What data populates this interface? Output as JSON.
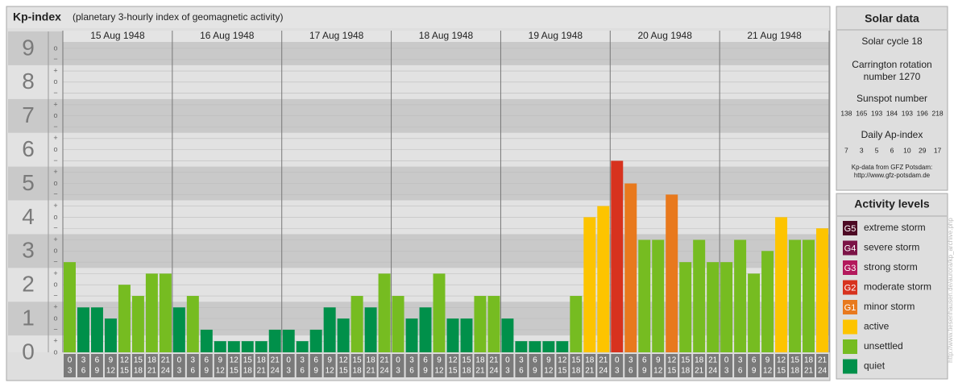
{
  "chart_data": {
    "type": "bar",
    "title": "Kp-index",
    "subtitle": "(planetary 3-hourly index of geomagnetic activity)",
    "ylim": [
      0,
      9.5
    ],
    "yticks": [
      0,
      1,
      2,
      3,
      4,
      5,
      6,
      7,
      8,
      9
    ],
    "minor_yticks": [
      {
        "value": 0,
        "label": "o"
      },
      {
        "value": 0.33,
        "label": "+"
      },
      {
        "value": 0.67,
        "label": "−"
      },
      {
        "value": 1,
        "label": "o"
      },
      {
        "value": 1.33,
        "label": "+"
      },
      {
        "value": 1.67,
        "label": "−"
      },
      {
        "value": 2,
        "label": "o"
      },
      {
        "value": 2.33,
        "label": "+"
      },
      {
        "value": 2.67,
        "label": "−"
      },
      {
        "value": 3,
        "label": "o"
      },
      {
        "value": 3.33,
        "label": "+"
      },
      {
        "value": 3.67,
        "label": "−"
      },
      {
        "value": 4,
        "label": "o"
      },
      {
        "value": 4.33,
        "label": "+"
      },
      {
        "value": 4.67,
        "label": "−"
      },
      {
        "value": 5,
        "label": "o"
      },
      {
        "value": 5.33,
        "label": "+"
      },
      {
        "value": 5.67,
        "label": "−"
      },
      {
        "value": 6,
        "label": "o"
      },
      {
        "value": 6.33,
        "label": "+"
      },
      {
        "value": 6.67,
        "label": "−"
      },
      {
        "value": 7,
        "label": "o"
      },
      {
        "value": 7.33,
        "label": "+"
      },
      {
        "value": 7.67,
        "label": "−"
      },
      {
        "value": 8,
        "label": "o"
      },
      {
        "value": 8.33,
        "label": "+"
      },
      {
        "value": 8.67,
        "label": "−"
      },
      {
        "value": 9,
        "label": "o"
      }
    ],
    "hours": [
      [
        "0",
        "3"
      ],
      [
        "3",
        "6"
      ],
      [
        "6",
        "9"
      ],
      [
        "9",
        "12"
      ],
      [
        "12",
        "15"
      ],
      [
        "15",
        "18"
      ],
      [
        "18",
        "21"
      ],
      [
        "21",
        "24"
      ]
    ],
    "days": [
      {
        "date": "15 Aug 1948",
        "values": [
          2.67,
          1.33,
          1.33,
          1,
          2,
          1.67,
          2.33,
          2.33
        ],
        "colors": [
          "#76bc21",
          "#00904a",
          "#00904a",
          "#00904a",
          "#76bc21",
          "#76bc21",
          "#76bc21",
          "#76bc21"
        ]
      },
      {
        "date": "16 Aug 1948",
        "values": [
          1.33,
          1.67,
          0.67,
          0.33,
          0.33,
          0.33,
          0.33,
          0.67
        ],
        "colors": [
          "#00904a",
          "#76bc21",
          "#00904a",
          "#00904a",
          "#00904a",
          "#00904a",
          "#00904a",
          "#00904a"
        ]
      },
      {
        "date": "17 Aug 1948",
        "values": [
          0.67,
          0.33,
          0.67,
          1.33,
          1,
          1.67,
          1.33,
          2.33
        ],
        "colors": [
          "#00904a",
          "#00904a",
          "#00904a",
          "#00904a",
          "#00904a",
          "#76bc21",
          "#00904a",
          "#76bc21"
        ]
      },
      {
        "date": "18 Aug 1948",
        "values": [
          1.67,
          1,
          1.33,
          2.33,
          1,
          1,
          1.67,
          1.67
        ],
        "colors": [
          "#76bc21",
          "#00904a",
          "#00904a",
          "#76bc21",
          "#00904a",
          "#00904a",
          "#76bc21",
          "#76bc21"
        ]
      },
      {
        "date": "19 Aug 1948",
        "values": [
          1,
          0.33,
          0.33,
          0.33,
          0.33,
          1.67,
          4,
          4.33
        ],
        "colors": [
          "#00904a",
          "#00904a",
          "#00904a",
          "#00904a",
          "#00904a",
          "#76bc21",
          "#fdc400",
          "#fdc400"
        ]
      },
      {
        "date": "20 Aug 1948",
        "values": [
          5.67,
          5,
          3.33,
          3.33,
          4.67,
          2.67,
          3.33,
          2.67
        ],
        "colors": [
          "#d7321e",
          "#e8791d",
          "#76bc21",
          "#76bc21",
          "#e8791d",
          "#76bc21",
          "#76bc21",
          "#76bc21"
        ]
      },
      {
        "date": "21 Aug 1948",
        "values": [
          2.67,
          3.33,
          2.33,
          3,
          4,
          3.33,
          3.33,
          3.67
        ],
        "colors": [
          "#76bc21",
          "#76bc21",
          "#76bc21",
          "#76bc21",
          "#fdc400",
          "#76bc21",
          "#76bc21",
          "#fdc400"
        ]
      }
    ]
  },
  "solar": {
    "title": "Solar data",
    "cycle": "Solar cycle 18",
    "carrington": [
      "Carrington rotation",
      "number 1270"
    ],
    "sunspot_label": "Sunspot number",
    "sunspot": [
      138,
      165,
      193,
      184,
      193,
      196,
      218
    ],
    "ap_label": "Daily Ap-index",
    "ap": [
      7,
      3,
      5,
      6,
      10,
      29,
      17
    ],
    "source": [
      "Kp-data from GFZ Potsdam:",
      "http://www.gfz-potsdam.de"
    ]
  },
  "legend": {
    "title": "Activity levels",
    "items": [
      {
        "code": "G5",
        "label": "extreme storm",
        "color": "#4d0a24"
      },
      {
        "code": "G4",
        "label": "severe storm",
        "color": "#7b1346"
      },
      {
        "code": "G3",
        "label": "strong storm",
        "color": "#b3195c"
      },
      {
        "code": "G2",
        "label": "moderate storm",
        "color": "#d7321e"
      },
      {
        "code": "G1",
        "label": "minor storm",
        "color": "#e8791d"
      },
      {
        "label": "active",
        "color": "#fdc400"
      },
      {
        "label": "unsettled",
        "color": "#76bc21"
      },
      {
        "label": "quiet",
        "color": "#00904a"
      }
    ]
  },
  "watermark": "http://www.tiesenhausen.de/aurora/kp_archive.php"
}
